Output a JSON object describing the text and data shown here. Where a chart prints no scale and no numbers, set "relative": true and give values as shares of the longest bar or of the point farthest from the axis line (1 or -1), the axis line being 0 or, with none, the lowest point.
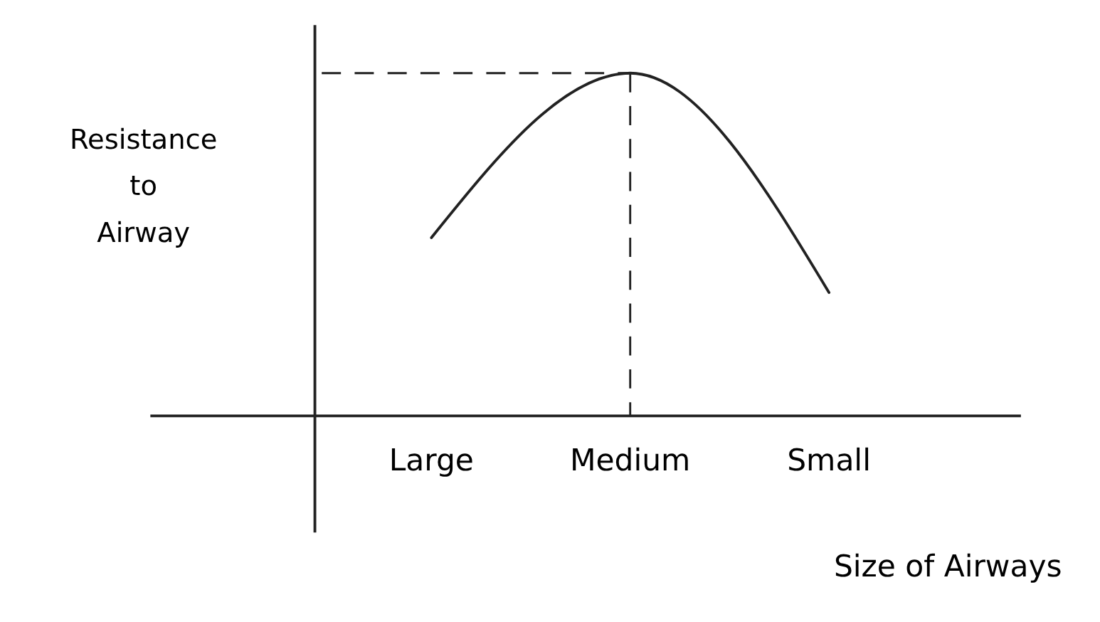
{
  "chart_data": {
    "type": "line",
    "relative": true,
    "xlabel": "Size of Airways",
    "ylabel": "Resistance to Airway",
    "categories": [
      "Large",
      "Medium",
      "Small"
    ],
    "series": [
      {
        "color": "#222222",
        "values": [
          0.52,
          1,
          0.36
        ]
      }
    ],
    "ref_lines": [
      {
        "axis": "y",
        "value": 1,
        "line_style": "dashed",
        "color": "#222222"
      },
      {
        "axis": "x",
        "value": "Medium",
        "line_style": "dashed",
        "color": "#222222"
      }
    ],
    "line_style": "solid"
  }
}
